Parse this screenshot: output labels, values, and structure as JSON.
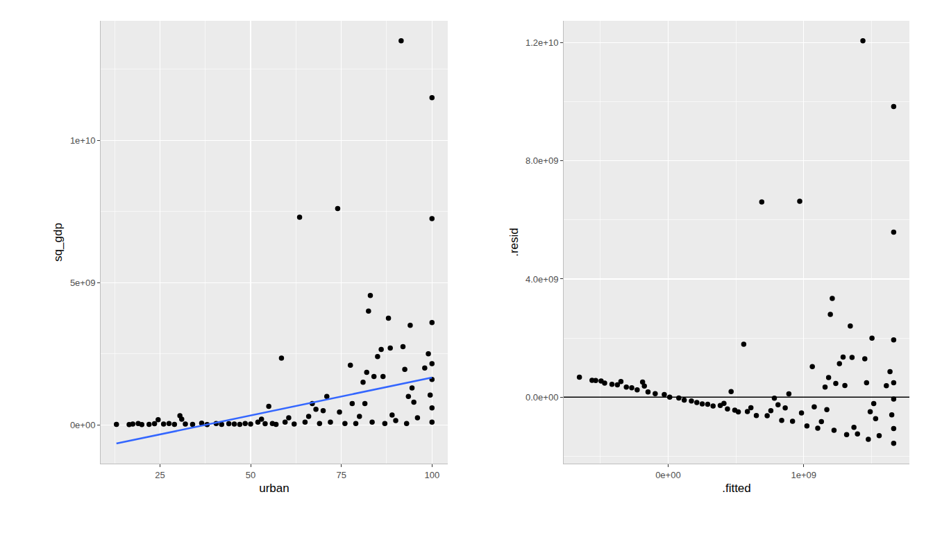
{
  "chart_data": [
    {
      "type": "scatter",
      "x_label": "urban",
      "y_label": "sq_gdp",
      "xlim": [
        8.65,
        104.35
      ],
      "ylim": [
        -1360000000.0,
        14200000000.0
      ],
      "xticks": [
        25,
        50,
        75,
        100
      ],
      "yticks": [
        {
          "value": 0,
          "label": "0e+00"
        },
        {
          "value": 5000000000.0,
          "label": "5e+09"
        },
        {
          "value": 10000000000.0,
          "label": "1e+10"
        }
      ],
      "grid": true,
      "series": [
        {
          "type": "scatter",
          "color": "#000000",
          "marker": "circle",
          "x": [
            13,
            16.5,
            17.5,
            19,
            20,
            22,
            23.5,
            24.5,
            26,
            27.5,
            29,
            30.5,
            31,
            32,
            34,
            36.5,
            38,
            40.5,
            42,
            44,
            45.5,
            47,
            48.5,
            50,
            52,
            53,
            54,
            55,
            56,
            57,
            58.5,
            59.5,
            60.5,
            62,
            63.5,
            65,
            66,
            67,
            68,
            69,
            70,
            71,
            72,
            74,
            74.5,
            76,
            77.5,
            78,
            79,
            80,
            81,
            81.5,
            82,
            82.5,
            83,
            83.5,
            84,
            85,
            86,
            86.5,
            87,
            88,
            88.5,
            89,
            90,
            91.5,
            92,
            92.5,
            93,
            93.5,
            94,
            94.5,
            95,
            96,
            98,
            99,
            99.5,
            100,
            100,
            100,
            100,
            100,
            100,
            100
          ],
          "values": [
            20000000.0,
            10000000.0,
            30000000.0,
            50000000.0,
            10000000.0,
            20000000.0,
            40000000.0,
            180000000.0,
            30000000.0,
            50000000.0,
            20000000.0,
            320000000.0,
            200000000.0,
            30000000.0,
            20000000.0,
            60000000.0,
            10000000.0,
            50000000.0,
            20000000.0,
            40000000.0,
            30000000.0,
            20000000.0,
            50000000.0,
            30000000.0,
            100000000.0,
            200000000.0,
            40000000.0,
            650000000.0,
            50000000.0,
            20000000.0,
            2350000000.0,
            100000000.0,
            250000000.0,
            30000000.0,
            7300000000.0,
            100000000.0,
            300000000.0,
            750000000.0,
            550000000.0,
            50000000.0,
            500000000.0,
            1000000000.0,
            100000000.0,
            7600000000.0,
            450000000.0,
            50000000.0,
            2100000000.0,
            750000000.0,
            50000000.0,
            300000000.0,
            1500000000.0,
            750000000.0,
            1850000000.0,
            4000000000.0,
            4550000000.0,
            100000000.0,
            1700000000.0,
            2400000000.0,
            2650000000.0,
            1700000000.0,
            50000000.0,
            3750000000.0,
            2700000000.0,
            350000000.0,
            150000000.0,
            13500000000.0,
            2750000000.0,
            1950000000.0,
            50000000.0,
            1000000000.0,
            3500000000.0,
            1300000000.0,
            800000000.0,
            250000000.0,
            2000000000.0,
            2500000000.0,
            1050000000.0,
            11500000000.0,
            7250000000.0,
            3600000000.0,
            2150000000.0,
            1600000000.0,
            600000000.0,
            100000000.0
          ]
        },
        {
          "type": "line",
          "color": "#3366FF",
          "x": [
            13,
            100
          ],
          "values": [
            -654000000.0,
            1664000000.0
          ]
        }
      ]
    },
    {
      "type": "scatter",
      "x_label": ".fitted",
      "y_label": ".resid",
      "xlim": [
        -770000000.0,
        1780000000.0
      ],
      "ylim": [
        -2250000000.0,
        12740000000.0
      ],
      "xticks": [
        {
          "value": 0,
          "label": "0e+00"
        },
        {
          "value": 1000000000.0,
          "label": "1e+09"
        }
      ],
      "yticks": [
        {
          "value": 0,
          "label": "0.0e+00"
        },
        {
          "value": 4000000000.0,
          "label": "4.0e+09"
        },
        {
          "value": 8000000000.0,
          "label": "8.0e+09"
        },
        {
          "value": 12000000000.0,
          "label": "1.2e+10"
        }
      ],
      "grid": true,
      "hline": 0,
      "series": [
        {
          "type": "scatter",
          "color": "#000000",
          "marker": "circle",
          "x": [
            -654000000.0,
            -561000000.0,
            -534000000.0,
            -494000000.0,
            -468000000.0,
            -414000000.0,
            -374000000.0,
            -348000000.0,
            -308000000.0,
            -268000000.0,
            -228000000.0,
            -188000000.0,
            -175000000.0,
            -148000000.0,
            -95000000.0,
            -28000000.0,
            12000000.0,
            79000000.0,
            119000000.0,
            172000000.0,
            212000000.0,
            252000000.0,
            292000000.0,
            332000000.0,
            385000000.0,
            412000000.0,
            438000000.0,
            465000000.0,
            492000000.0,
            518000000.0,
            558000000.0,
            585000000.0,
            611000000.0,
            651000000.0,
            691000000.0,
            731000000.0,
            758000000.0,
            784000000.0,
            811000000.0,
            838000000.0,
            864000000.0,
            891000000.0,
            918000000.0,
            971000000.0,
            984000000.0,
            1024000000.0,
            1064000000.0,
            1078000000.0,
            1104000000.0,
            1131000000.0,
            1158000000.0,
            1171000000.0,
            1184000000.0,
            1197000000.0,
            1211000000.0,
            1224000000.0,
            1237000000.0,
            1264000000.0,
            1291000000.0,
            1304000000.0,
            1317000000.0,
            1344000000.0,
            1357000000.0,
            1371000000.0,
            1397000000.0,
            1437000000.0,
            1451000000.0,
            1464000000.0,
            1477000000.0,
            1491000000.0,
            1504000000.0,
            1517000000.0,
            1531000000.0,
            1557000000.0,
            1610000000.0,
            1637000000.0,
            1650000000.0,
            1664000000.0,
            1664000000.0,
            1664000000.0,
            1664000000.0,
            1664000000.0,
            1664000000.0,
            1664000000.0
          ],
          "values": [
            674000000.0,
            571000000.0,
            564000000.0,
            544000000.0,
            478000000.0,
            434000000.0,
            414000000.0,
            528000000.0,
            338000000.0,
            318000000.0,
            248000000.0,
            508000000.0,
            375000000.0,
            178000000.0,
            115000000.0,
            88000000.0,
            -2000000.0,
            -29000000.0,
            -99000000.0,
            -132000000.0,
            -182000000.0,
            -232000000.0,
            -242000000.0,
            -302000000.0,
            -285000000.0,
            -212000000.0,
            -398000000.0,
            185000000.0,
            -442000000.0,
            -498000000.0,
            1792000000.0,
            -485000000.0,
            -361000000.0,
            -621000000.0,
            6609000000.0,
            -631000000.0,
            -458000000.0,
            -34000000.0,
            -261000000.0,
            -788000000.0,
            -364000000.0,
            109000000.0,
            -818000000.0,
            6629000000.0,
            -534000000.0,
            -974000000.0,
            1036000000.0,
            -328000000.0,
            -1054000000.0,
            -831000000.0,
            342000000.0,
            -421000000.0,
            666000000.0,
            2803000000.0,
            3339000000.0,
            -1124000000.0,
            463000000.0,
            1136000000.0,
            1359000000.0,
            396000000.0,
            -1267000000.0,
            2406000000.0,
            1343000000.0,
            -1021000000.0,
            -1247000000.0,
            12063000000.0,
            1299000000.0,
            486000000.0,
            -1427000000.0,
            -491000000.0,
            1996000000.0,
            -217000000.0,
            -731000000.0,
            -1307000000.0,
            390000000.0,
            863000000.0,
            -600000000.0,
            9836000000.0,
            5586000000.0,
            1936000000.0,
            486000000.0,
            -64000000.0,
            -1064000000.0,
            -1564000000.0
          ]
        }
      ]
    }
  ]
}
